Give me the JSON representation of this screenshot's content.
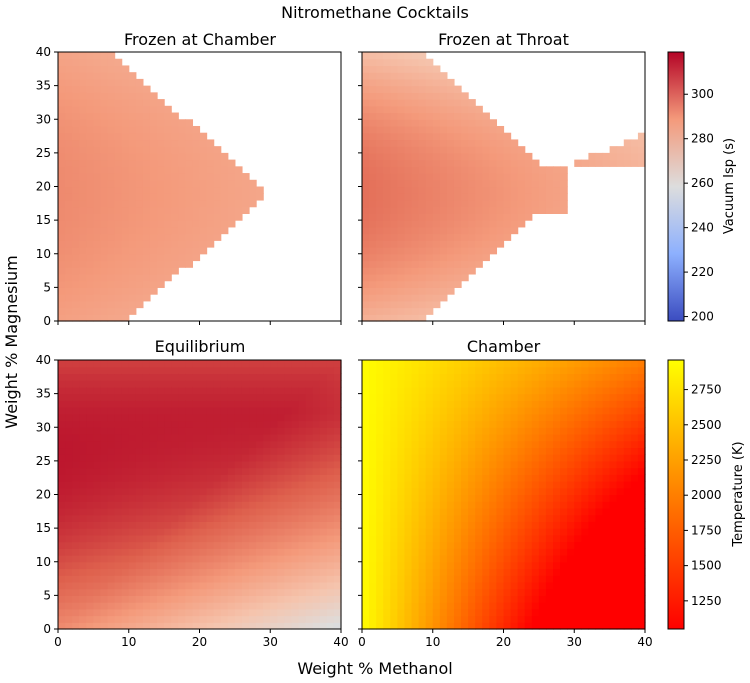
{
  "figure": {
    "title": "Nitromethane Cocktails",
    "xlabel": "Weight % Methanol",
    "ylabel": "Weight % Magnesium"
  },
  "chart_data": [
    {
      "type": "heatmap",
      "title": "Frozen at Chamber",
      "field": "frozen_chamber",
      "colorbar": "isp",
      "xlim": [
        0,
        40
      ],
      "ylim": [
        0,
        40
      ],
      "xticks": [
        0,
        10,
        20,
        30,
        40
      ],
      "yticks": [
        0,
        5,
        10,
        15,
        20,
        25,
        30,
        35,
        40
      ],
      "grid": false
    },
    {
      "type": "heatmap",
      "title": "Frozen at Throat",
      "field": "frozen_throat",
      "colorbar": "isp",
      "xlim": [
        0,
        40
      ],
      "ylim": [
        0,
        40
      ],
      "xticks": [
        0,
        10,
        20,
        30,
        40
      ],
      "yticks": [
        0,
        5,
        10,
        15,
        20,
        25,
        30,
        35,
        40
      ],
      "grid": false
    },
    {
      "type": "heatmap",
      "title": "Equilibrium",
      "field": "equilibrium",
      "colorbar": "isp",
      "xlim": [
        0,
        40
      ],
      "ylim": [
        0,
        40
      ],
      "xticks": [
        0,
        10,
        20,
        30,
        40
      ],
      "yticks": [
        0,
        5,
        10,
        15,
        20,
        25,
        30,
        35,
        40
      ],
      "grid": false
    },
    {
      "type": "heatmap",
      "title": "Chamber",
      "field": "chamber_temperature",
      "colorbar": "temperature",
      "xlim": [
        0,
        40
      ],
      "ylim": [
        0,
        40
      ],
      "xticks": [
        0,
        10,
        20,
        30,
        40
      ],
      "yticks": [
        0,
        5,
        10,
        15,
        20,
        25,
        30,
        35,
        40
      ],
      "grid": false
    }
  ],
  "colorbars": {
    "isp": {
      "label": "Vacuum Isp (s)",
      "colormap": "coolwarm",
      "range": [
        198,
        319
      ],
      "ticks": [
        200,
        220,
        240,
        260,
        280,
        300
      ]
    },
    "temperature": {
      "label": "Temperature (K)",
      "colormap": "autumn",
      "range": [
        1050,
        2960
      ],
      "ticks": [
        1250,
        1500,
        1750,
        2000,
        2250,
        2500,
        2750
      ]
    }
  },
  "colors": {
    "coolwarm_low": "#3b4cc0",
    "coolwarm_mid": "#dddddd",
    "coolwarm_high": "#b40426",
    "autumn_low": "#ff0000",
    "autumn_high": "#ffff00"
  }
}
